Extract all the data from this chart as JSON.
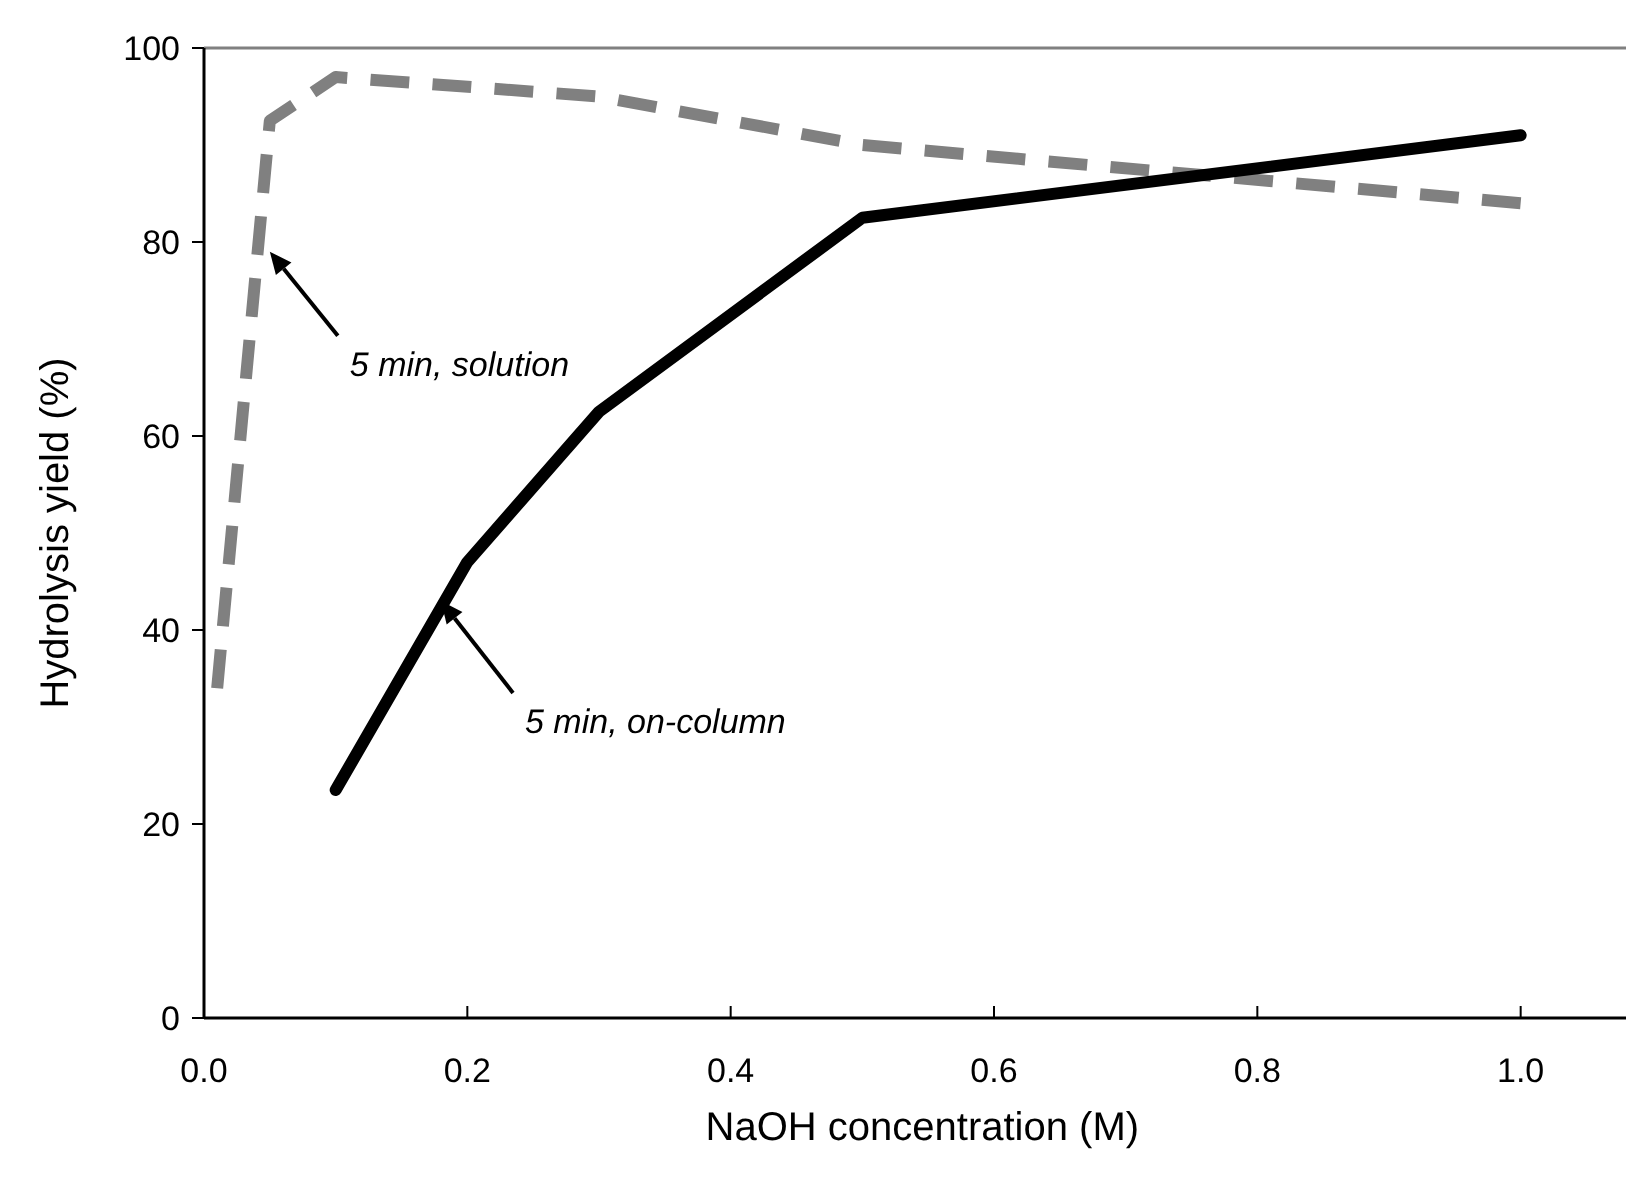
{
  "chart_data": {
    "type": "line",
    "xlabel": "NaOH concentration (M)",
    "ylabel": "Hydrolysis yield (%)",
    "xlim": [
      0,
      1.08
    ],
    "ylim": [
      0,
      100
    ],
    "xticks": [
      {
        "value": 0,
        "label": "0.0"
      },
      {
        "value": 0.2,
        "label": "0.2"
      },
      {
        "value": 0.4,
        "label": "0.4"
      },
      {
        "value": 0.6,
        "label": "0.6"
      },
      {
        "value": 0.8,
        "label": "0.8"
      },
      {
        "value": 1,
        "label": "1.0"
      }
    ],
    "yticks": [
      0,
      20,
      40,
      60,
      80,
      100
    ],
    "grid": false,
    "marker": "none",
    "series": [
      {
        "color": "#808080",
        "line_style": "dashed",
        "x": [
          0.01,
          0.05,
          0.1,
          0.3,
          0.5,
          1.0
        ],
        "values": [
          34,
          92.5,
          97,
          95,
          90,
          84
        ]
      },
      {
        "color": "#000000",
        "line_style": "solid",
        "x": [
          0.1,
          0.2,
          0.3,
          0.5,
          1.0
        ],
        "values": [
          23.5,
          47,
          62.5,
          82.5,
          91
        ]
      }
    ],
    "annotations": [
      "5 min, solution",
      "5 min, on-column"
    ]
  }
}
